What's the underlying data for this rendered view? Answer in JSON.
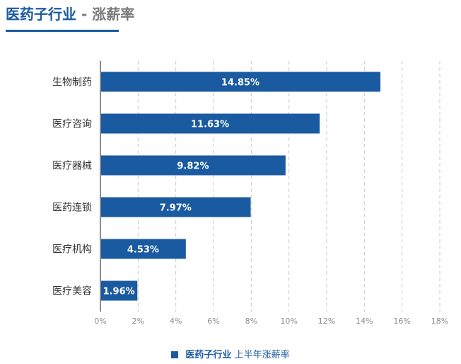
{
  "header": {
    "title_main": "医药子行业",
    "title_sub": " - 涨薪率"
  },
  "legend": {
    "series_name_bold": "医药子行业",
    "series_name_rest": " 上半年涨薪率"
  },
  "colors": {
    "accent": "#1a5aa0",
    "bar": "#1a5aa0",
    "grid": "#c8c8c8",
    "axis": "#8c8c8c",
    "tick_text": "#8c8c8c",
    "category_text": "#333333",
    "bar_label_text": "#ffffff"
  },
  "chart_data": {
    "type": "bar",
    "orientation": "horizontal",
    "categories": [
      "生物制药",
      "医疗咨询",
      "医疗器械",
      "医药连锁",
      "医疗机构",
      "医疗美容"
    ],
    "values": [
      14.85,
      11.63,
      9.82,
      7.97,
      4.53,
      1.96
    ],
    "value_labels": [
      "14.85%",
      "11.63%",
      "9.82%",
      "7.97%",
      "4.53%",
      "1.96%"
    ],
    "x_ticks": [
      "0%",
      "2%",
      "4%",
      "6%",
      "8%",
      "10%",
      "12%",
      "14%",
      "16%",
      "18%"
    ],
    "xlim": [
      0,
      18
    ],
    "grid": true,
    "legend_position": "bottom",
    "title": "医药子行业 - 涨薪率",
    "xlabel": "",
    "ylabel": ""
  }
}
